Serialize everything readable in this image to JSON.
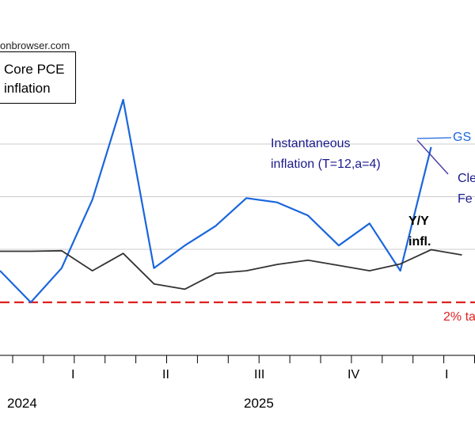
{
  "watermark": "onbrowser.com",
  "title": [
    "Core PCE",
    "inflation"
  ],
  "annotations": {
    "instantaneous": [
      "Instantaneous",
      "inflation (T=12,a=4)"
    ],
    "gs": "GS",
    "cleveland_fed": [
      "Cle",
      "Fe"
    ],
    "yy": [
      "Y/Y",
      "infl."
    ],
    "target": "2% ta"
  },
  "x_axis": {
    "quarters": [
      "I",
      "II",
      "III",
      "IV",
      "I"
    ],
    "years": [
      "2024",
      "2025"
    ]
  },
  "colors": {
    "instantaneous": "#1a66dd",
    "yy": "#333333",
    "target": "#e02020",
    "grid": "#cccccc"
  },
  "chart_data": {
    "type": "line",
    "x": [
      "2024-09",
      "2024-10",
      "2024-11",
      "2024-12",
      "2025-01",
      "2025-02",
      "2025-03",
      "2025-04",
      "2025-05",
      "2025-06",
      "2025-07",
      "2025-08",
      "2025-09",
      "2025-10",
      "2025-11",
      "2025-12",
      "2026-01",
      "2026-02"
    ],
    "series": [
      {
        "name": "Instantaneous inflation (T=12,a=4)",
        "values": [
          2.6,
          2.0,
          2.65,
          3.95,
          5.85,
          2.65,
          3.08,
          3.45,
          3.98,
          3.9,
          3.65,
          3.08,
          3.5,
          2.6,
          4.95,
          null,
          null,
          null
        ]
      },
      {
        "name": "Y/Y infl.",
        "values": [
          2.97,
          2.97,
          2.98,
          2.6,
          2.93,
          2.35,
          2.25,
          2.55,
          2.6,
          2.72,
          2.8,
          2.7,
          2.6,
          2.73,
          3.0,
          2.9,
          null,
          null
        ]
      }
    ],
    "target": 2.0
  }
}
